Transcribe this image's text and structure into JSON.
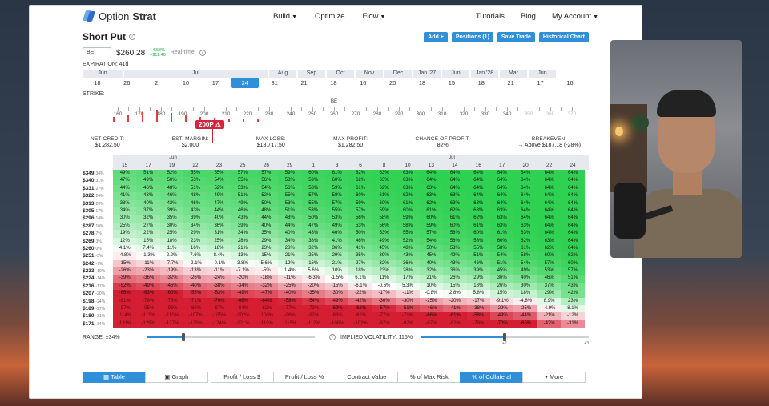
{
  "nav": {
    "logo_a": "Option",
    "logo_b": "Strat",
    "build": "Build",
    "optimize": "Optimize",
    "flow": "Flow",
    "tutorials": "Tutorials",
    "blog": "Blog",
    "account": "My Account"
  },
  "strategy": {
    "title": "Short Put",
    "symbol": "BE",
    "price": "$260.28",
    "change_pct": "+4.58%",
    "change_abs": "+$11.40",
    "realtime": "Real-time"
  },
  "actions": {
    "add": "Add +",
    "positions": "Positions (1)",
    "save": "Save Trade",
    "historical": "Historical Chart"
  },
  "expiration": {
    "label": "EXPIRATION: 41d",
    "months": [
      {
        "name": "Jun",
        "w": 52
      },
      {
        "name": "Jul",
        "w": 181
      },
      {
        "name": "Aug",
        "w": 36
      },
      {
        "name": "Sep",
        "w": 36
      },
      {
        "name": "Oct",
        "w": 36
      },
      {
        "name": "Nov",
        "w": 36
      },
      {
        "name": "Dec",
        "w": 36
      },
      {
        "name": "Jan '27",
        "w": 36
      },
      {
        "name": "Jun",
        "w": 36
      },
      {
        "name": "Jan '28",
        "w": 36
      },
      {
        "name": "Mar",
        "w": 36
      },
      {
        "name": "Jun",
        "w": 36
      }
    ],
    "days": [
      "18",
      "26",
      "2",
      "10",
      "17",
      "24",
      "31",
      "21",
      "18",
      "16",
      "20",
      "18",
      "15",
      "18",
      "21",
      "17",
      "16"
    ],
    "selected_day": "24"
  },
  "strike": {
    "label": "STRIKE:",
    "current": "BE",
    "callout": "200P ⚠",
    "numbers": [
      "160",
      "170",
      "180",
      "190",
      "200",
      "210",
      "220",
      "230",
      "240",
      "250",
      "260",
      "270",
      "280",
      "290",
      "300",
      "310",
      "320",
      "330",
      "340",
      "350",
      "360",
      "370"
    ]
  },
  "metrics": [
    {
      "label": "NET CREDIT:",
      "value": "$1,282.50"
    },
    {
      "label": "EST. MARGIN:",
      "value": "$2,000"
    },
    {
      "label": "MAX LOSS:",
      "value": "$18,717.50"
    },
    {
      "label": "MAX PROFIT:",
      "value": "$1,282.50"
    },
    {
      "label": "CHANCE OF PROFIT:",
      "value": "82%"
    },
    {
      "label": "BREAKEVEN:",
      "value": "→ Above $187.18 (-28%)"
    }
  ],
  "grid": {
    "month_a": "Jun",
    "month_b": "Jul",
    "cols": [
      "15",
      "17",
      "19",
      "22",
      "23",
      "25",
      "26",
      "29",
      "1",
      "3",
      "6",
      "8",
      "10",
      "13",
      "14",
      "16",
      "17",
      "20",
      "22",
      "24"
    ],
    "rows": [
      {
        "p": "$349",
        "pct": "34%",
        "v": [
          "49%",
          "51%",
          "52%",
          "55%",
          "55%",
          "57%",
          "57%",
          "59%",
          "60%",
          "61%",
          "62%",
          "63%",
          "63%",
          "64%",
          "64%",
          "64%",
          "64%",
          "64%",
          "64%",
          "64%"
        ]
      },
      {
        "p": "$340",
        "pct": "31%",
        "v": [
          "47%",
          "49%",
          "50%",
          "53%",
          "54%",
          "55%",
          "56%",
          "58%",
          "59%",
          "60%",
          "62%",
          "63%",
          "63%",
          "64%",
          "64%",
          "64%",
          "64%",
          "64%",
          "64%",
          "64%"
        ]
      },
      {
        "p": "$331",
        "pct": "27%",
        "v": [
          "44%",
          "46%",
          "48%",
          "51%",
          "52%",
          "53%",
          "54%",
          "56%",
          "58%",
          "59%",
          "61%",
          "62%",
          "63%",
          "63%",
          "64%",
          "64%",
          "64%",
          "64%",
          "64%",
          "64%"
        ]
      },
      {
        "p": "$322",
        "pct": "24%",
        "v": [
          "41%",
          "43%",
          "46%",
          "48%",
          "49%",
          "51%",
          "52%",
          "55%",
          "57%",
          "58%",
          "60%",
          "61%",
          "62%",
          "63%",
          "63%",
          "64%",
          "64%",
          "64%",
          "64%",
          "64%"
        ]
      },
      {
        "p": "$313",
        "pct": "20%",
        "v": [
          "38%",
          "40%",
          "42%",
          "46%",
          "47%",
          "49%",
          "50%",
          "53%",
          "55%",
          "57%",
          "59%",
          "60%",
          "61%",
          "62%",
          "63%",
          "63%",
          "64%",
          "64%",
          "64%",
          "64%"
        ]
      },
      {
        "p": "$305",
        "pct": "17%",
        "v": [
          "34%",
          "37%",
          "39%",
          "43%",
          "44%",
          "46%",
          "48%",
          "51%",
          "53%",
          "55%",
          "57%",
          "59%",
          "60%",
          "61%",
          "62%",
          "63%",
          "63%",
          "64%",
          "64%",
          "64%"
        ]
      },
      {
        "p": "$296",
        "pct": "14%",
        "v": [
          "30%",
          "32%",
          "35%",
          "39%",
          "40%",
          "43%",
          "44%",
          "48%",
          "50%",
          "53%",
          "56%",
          "58%",
          "59%",
          "60%",
          "61%",
          "62%",
          "63%",
          "64%",
          "64%",
          "64%"
        ]
      },
      {
        "p": "$287",
        "pct": "10%",
        "v": [
          "25%",
          "27%",
          "30%",
          "34%",
          "36%",
          "39%",
          "40%",
          "44%",
          "47%",
          "49%",
          "53%",
          "56%",
          "58%",
          "59%",
          "60%",
          "61%",
          "63%",
          "63%",
          "64%",
          "64%"
        ]
      },
      {
        "p": "$278",
        "pct": "7%",
        "v": [
          "19%",
          "22%",
          "25%",
          "29%",
          "31%",
          "34%",
          "35%",
          "40%",
          "43%",
          "46%",
          "50%",
          "53%",
          "55%",
          "57%",
          "58%",
          "60%",
          "61%",
          "63%",
          "64%",
          "64%"
        ]
      },
      {
        "p": "$269",
        "pct": "3%",
        "v": [
          "12%",
          "15%",
          "18%",
          "23%",
          "25%",
          "28%",
          "29%",
          "34%",
          "38%",
          "41%",
          "46%",
          "49%",
          "52%",
          "54%",
          "56%",
          "58%",
          "60%",
          "62%",
          "63%",
          "64%"
        ]
      },
      {
        "p": "$260",
        "pct": "0%",
        "v": [
          "4.1%",
          "7.4%",
          "11%",
          "16%",
          "18%",
          "21%",
          "23%",
          "28%",
          "32%",
          "36%",
          "41%",
          "45%",
          "48%",
          "50%",
          "53%",
          "55%",
          "58%",
          "61%",
          "62%",
          "64%"
        ]
      },
      {
        "p": "$251",
        "pct": "-3%",
        "v": [
          "-4.8%",
          "-1.3%",
          "2.2%",
          "7.6%",
          "8.4%",
          "13%",
          "15%",
          "21%",
          "25%",
          "29%",
          "35%",
          "39%",
          "43%",
          "45%",
          "49%",
          "51%",
          "54%",
          "58%",
          "60%",
          "62%"
        ]
      },
      {
        "p": "$242",
        "pct": "-7%",
        "v": [
          "-15%",
          "-11%",
          "-7.7%",
          "-2.1%",
          "-0.1%",
          "3.8%",
          "5.6%",
          "12%",
          "16%",
          "21%",
          "27%",
          "32%",
          "36%",
          "40%",
          "43%",
          "46%",
          "51%",
          "54%",
          "57%",
          "60%"
        ]
      },
      {
        "p": "$233",
        "pct": "-10%",
        "v": [
          "-26%",
          "-23%",
          "-19%",
          "-13%",
          "-11%",
          "-7.1%",
          "-5%",
          "1.4%",
          "5.6%",
          "10%",
          "18%",
          "23%",
          "28%",
          "32%",
          "36%",
          "39%",
          "45%",
          "49%",
          "53%",
          "57%"
        ]
      },
      {
        "p": "$224",
        "pct": "-14%",
        "v": [
          "-39%",
          "-36%",
          "-32%",
          "-26%",
          "-24%",
          "-20%",
          "-18%",
          "-11%",
          "-6.3%",
          "-1.5%",
          "6.1%",
          "11%",
          "17%",
          "21%",
          "26%",
          "29%",
          "36%",
          "40%",
          "46%",
          "51%"
        ]
      },
      {
        "p": "$216",
        "pct": "-17%",
        "v": [
          "-52%",
          "-49%",
          "-46%",
          "-40%",
          "-38%",
          "-34%",
          "-32%",
          "-25%",
          "-20%",
          "-15%",
          "-6.1%",
          "-0.6%",
          "5.3%",
          "10%",
          "15%",
          "18%",
          "26%",
          "30%",
          "37%",
          "43%"
        ]
      },
      {
        "p": "$207",
        "pct": "-20%",
        "v": [
          "-66%",
          "-63%",
          "-60%",
          "-55%",
          "-53%",
          "-49%",
          "-47%",
          "-40%",
          "-35%",
          "-30%",
          "-22%",
          "-17%",
          "-11%",
          "-0.8%",
          "2.8%",
          "5.8%",
          "15%",
          "18%",
          "29%",
          "42%"
        ]
      },
      {
        "p": "$198",
        "pct": "-24%",
        "v": [
          "-81%",
          "-79%",
          "-76%",
          "-71%",
          "-70%",
          "-66%",
          "-64%",
          "-58%",
          "-54%",
          "-49%",
          "-42%",
          "-36%",
          "-30%",
          "-25%",
          "-20%",
          "-17%",
          "-9.1%",
          "-4.8%",
          "8.9%",
          "23%"
        ]
      },
      {
        "p": "$189",
        "pct": "-27%",
        "v": [
          "-97%",
          "-95%",
          "-93%",
          "-89%",
          "-87%",
          "-84%",
          "-82%",
          "-77%",
          "-73%",
          "-69%",
          "-62%",
          "-57%",
          "-51%",
          "-46%",
          "-41%",
          "-38%",
          "-29%",
          "-25%",
          "-4.9%",
          "8.1%"
        ]
      },
      {
        "p": "$180",
        "pct": "-31%",
        "v": [
          "-114%",
          "-112%",
          "-110%",
          "-107%",
          "-105%",
          "-102%",
          "-100%",
          "-96%",
          "-92%",
          "-88%",
          "-82%",
          "-77%",
          "-71%",
          "-66%",
          "-61%",
          "-58%",
          "-49%",
          "-44%",
          "-21%",
          "-12%"
        ]
      },
      {
        "p": "$171",
        "pct": "-34%",
        "v": [
          "-131%",
          "-129%",
          "-127%",
          "-125%",
          "-124%",
          "-121%",
          "-119%",
          "-115%",
          "-112%",
          "-108%",
          "-102%",
          "-97%",
          "-92%",
          "-87%",
          "-82%",
          "-79%",
          "-70%",
          "-65%",
          "-42%",
          "-31%"
        ]
      }
    ]
  },
  "controls": {
    "range": "RANGE: ±34%",
    "iv": "IMPLIED VOLATILITY: 115%",
    "iv_low": "+2",
    "iv_high": "+3",
    "range_value": 0.22,
    "iv_value": 0.5
  },
  "tabs": [
    {
      "label": "▦ Table",
      "active": true
    },
    {
      "label": "▣ Graph",
      "active": false
    },
    {
      "label": "Profit / Loss $",
      "active": false
    },
    {
      "label": "Profit / Loss %",
      "active": false
    },
    {
      "label": "Contract Value",
      "active": false
    },
    {
      "label": "% of Max Risk",
      "active": false
    },
    {
      "label": "% of Collateral",
      "active": true
    },
    {
      "label": "▾ More",
      "active": false
    }
  ],
  "colors": {
    "accent": "#2f8fd8",
    "loss": "#d3253d",
    "profit": "#2fd152"
  }
}
